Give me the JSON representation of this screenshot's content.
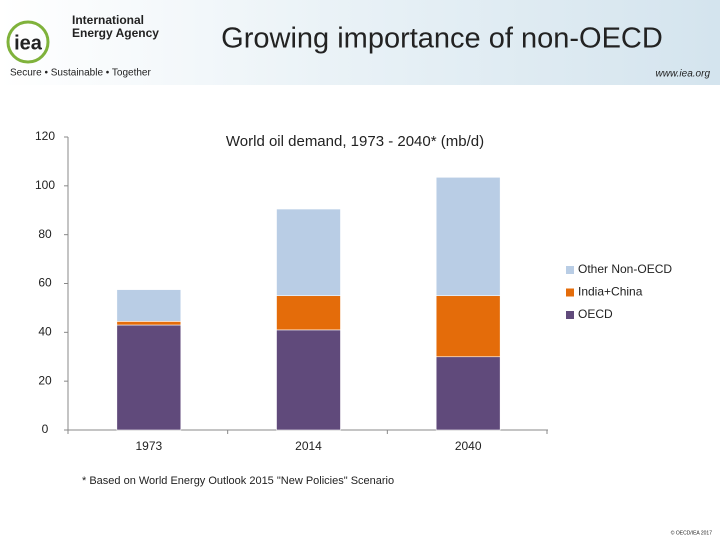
{
  "header": {
    "logo": "iea",
    "agency_line1": "International",
    "agency_line2": "Energy Agency",
    "tagline": "Secure • Sustainable • Together",
    "website": "www.iea.org",
    "title": "Growing importance of non-OECD"
  },
  "chart_data": {
    "type": "bar",
    "stacked": true,
    "title": "World oil demand, 1973 - 2040* (mb/d)",
    "categories": [
      "1973",
      "2014",
      "2040"
    ],
    "series": [
      {
        "name": "OECD",
        "color": "#604a7b",
        "values": [
          43,
          41,
          30
        ]
      },
      {
        "name": "India+China",
        "color": "#e46c0a",
        "values": [
          1.5,
          14,
          25
        ]
      },
      {
        "name": "Other Non-OECD",
        "color": "#b9cde5",
        "values": [
          13,
          35.5,
          48.5
        ]
      }
    ],
    "ylim": [
      0,
      120
    ],
    "yticks": [
      0,
      20,
      40,
      60,
      80,
      100,
      120
    ],
    "grid": false,
    "legend": "right"
  },
  "footnote": "* Based on World Energy Outlook 2015 \"New Policies\" Scenario",
  "copyright": "© OECD/IEA 2017"
}
